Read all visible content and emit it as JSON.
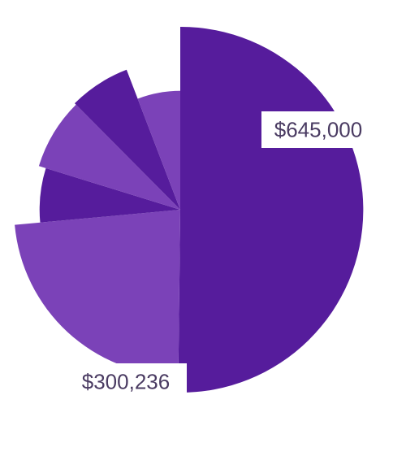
{
  "chart_data": {
    "type": "pie",
    "variant": "rose",
    "title": "",
    "slices": [
      {
        "value": 645000,
        "relative_radius": 1.0,
        "color": "#561c9c",
        "label": "$645,000"
      },
      {
        "value": 300236,
        "relative_radius": 0.91,
        "color": "#7b42b8",
        "label": "$300,236"
      },
      {
        "value": 80000,
        "relative_radius": 0.77,
        "color": "#561c9c",
        "label": ""
      },
      {
        "value": 100000,
        "relative_radius": 0.81,
        "color": "#7b42b8",
        "label": ""
      },
      {
        "value": 85000,
        "relative_radius": 0.82,
        "color": "#561c9c",
        "label": ""
      },
      {
        "value": 75000,
        "relative_radius": 0.65,
        "color": "#7b42b8",
        "label": ""
      }
    ],
    "colors": {
      "dark": "#561c9c",
      "light": "#7b42b8",
      "label_text": "#4a3b62",
      "label_background": "#ffffff"
    }
  }
}
